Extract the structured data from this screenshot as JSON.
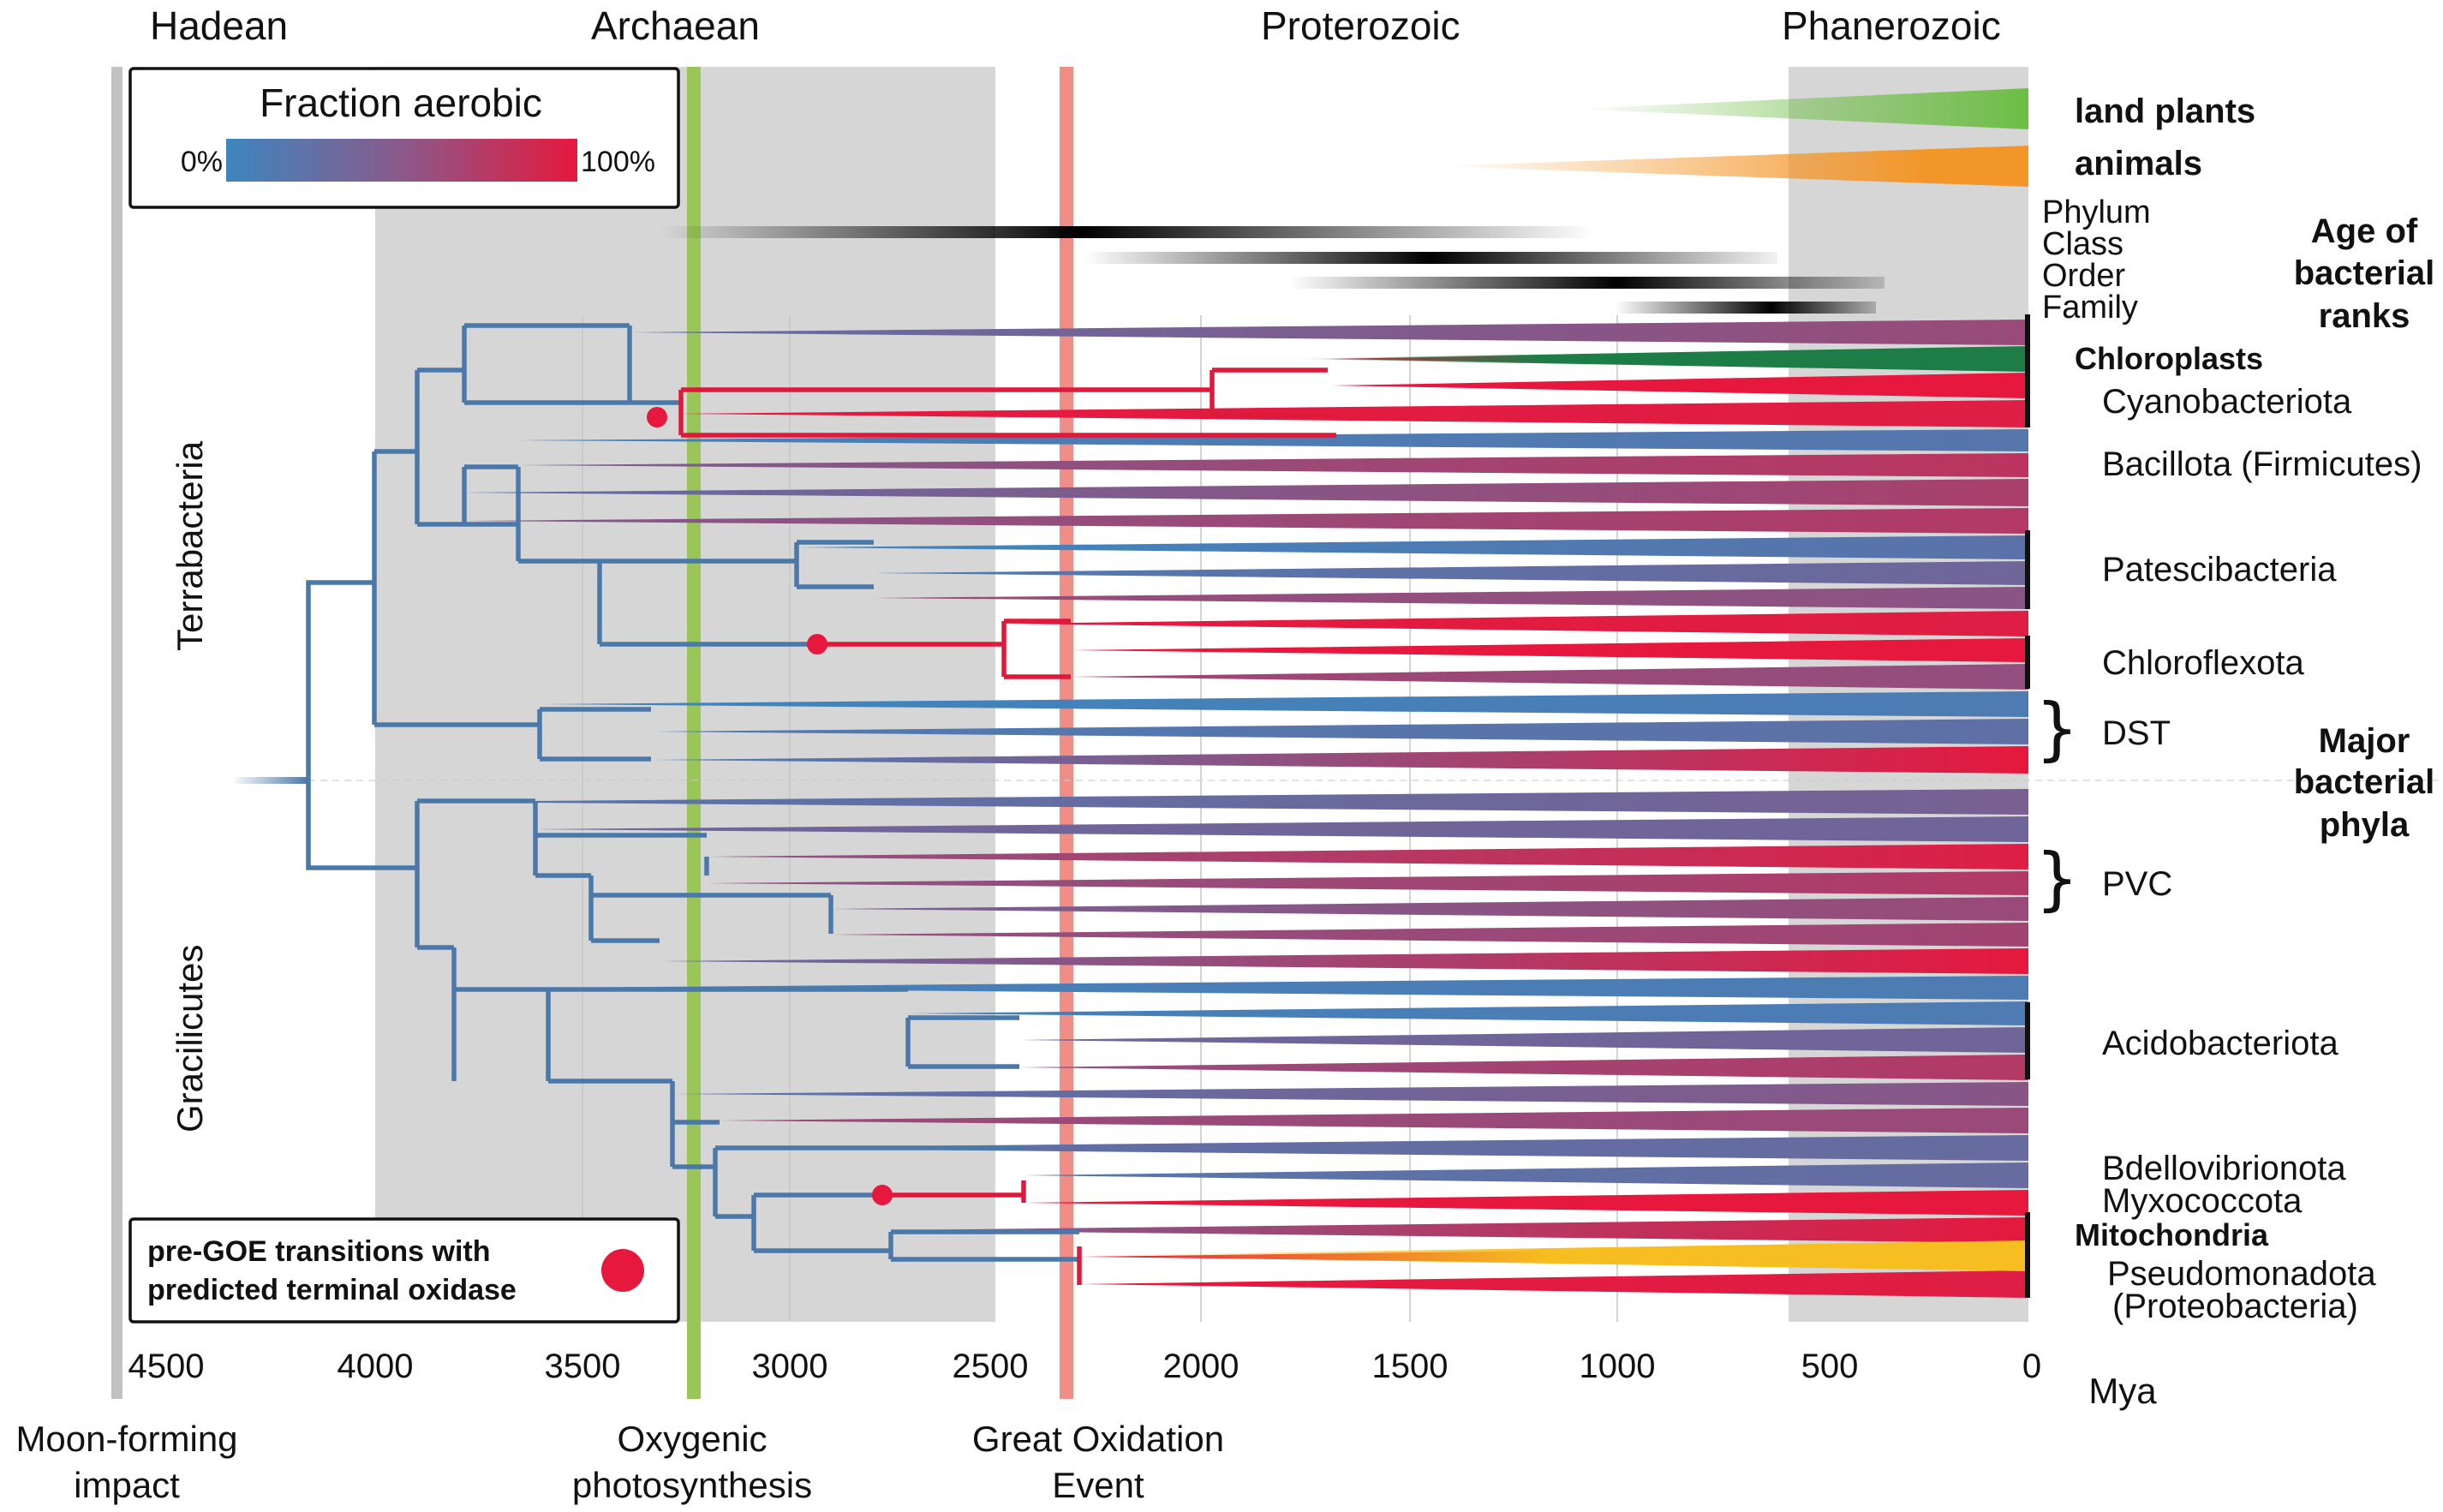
{
  "eras": [
    "Hadean",
    "Archaean",
    "Proterozoic",
    "Phanerozoic"
  ],
  "axis": {
    "ticks": [
      "4500",
      "4000",
      "3500",
      "3000",
      "2500",
      "2000",
      "1500",
      "1000",
      "500",
      "0"
    ],
    "unit": "Mya"
  },
  "events": {
    "moon_line1": "Moon-forming",
    "moon_line2": "impact",
    "oxy_line1": "Oxygenic",
    "oxy_line2": "photosynthesis",
    "goe_line1": "Great Oxidation",
    "goe_line2": "Event"
  },
  "legend": {
    "title": "Fraction aerobic",
    "min": "0%",
    "max": "100%"
  },
  "legend2": {
    "line1": "pre-GOE transitions with",
    "line2": "predicted terminal oxidase"
  },
  "eukaryotes": {
    "plants": "land plants",
    "animals": "animals"
  },
  "ranks": {
    "phylum": "Phylum",
    "class": "Class",
    "order": "Order",
    "family": "Family"
  },
  "age_ranks": {
    "line1": "Age of",
    "line2": "bacterial",
    "line3": "ranks"
  },
  "major_phyla": {
    "line1": "Major",
    "line2": "bacterial",
    "line3": "phyla"
  },
  "groups": {
    "terrabacteria": "Terrabacteria",
    "gracilicutes": "Gracilicutes"
  },
  "phyla": {
    "chloroplasts": "Chloroplasts",
    "cyanobacteriota": "Cyanobacteriota",
    "bacillota": "Bacillota (Firmicutes)",
    "patescibacteria": "Patescibacteria",
    "chloroflexota": "Chloroflexota",
    "dst": "DST",
    "pvc": "PVC",
    "acidobacteriota": "Acidobacteriota",
    "bdellovibrionota": "Bdellovibrionota",
    "myxococcota": "Myxococcota",
    "mitochondria": "Mitochondria",
    "pseudomonadota": "Pseudomonadota",
    "proteobacteria": "(Proteobacteria)"
  },
  "colors": {
    "anaerobic": "#3d86bf",
    "aerobic": "#e6183e",
    "tree_blue": "#4a78a8",
    "tree_red": "#dd1a3c",
    "oxygenic_line": "#9ac659",
    "goe_line": "#ee8e86",
    "moon_line": "#c2c2c2",
    "shade": "#d6d6d6",
    "plants": "#6dbd45",
    "animals": "#f3962a",
    "chloroplast": "#1e7c46",
    "mitochondria": "#f7be21",
    "mito_label": "#ee9527",
    "chloro_label": "#1e7c46"
  }
}
